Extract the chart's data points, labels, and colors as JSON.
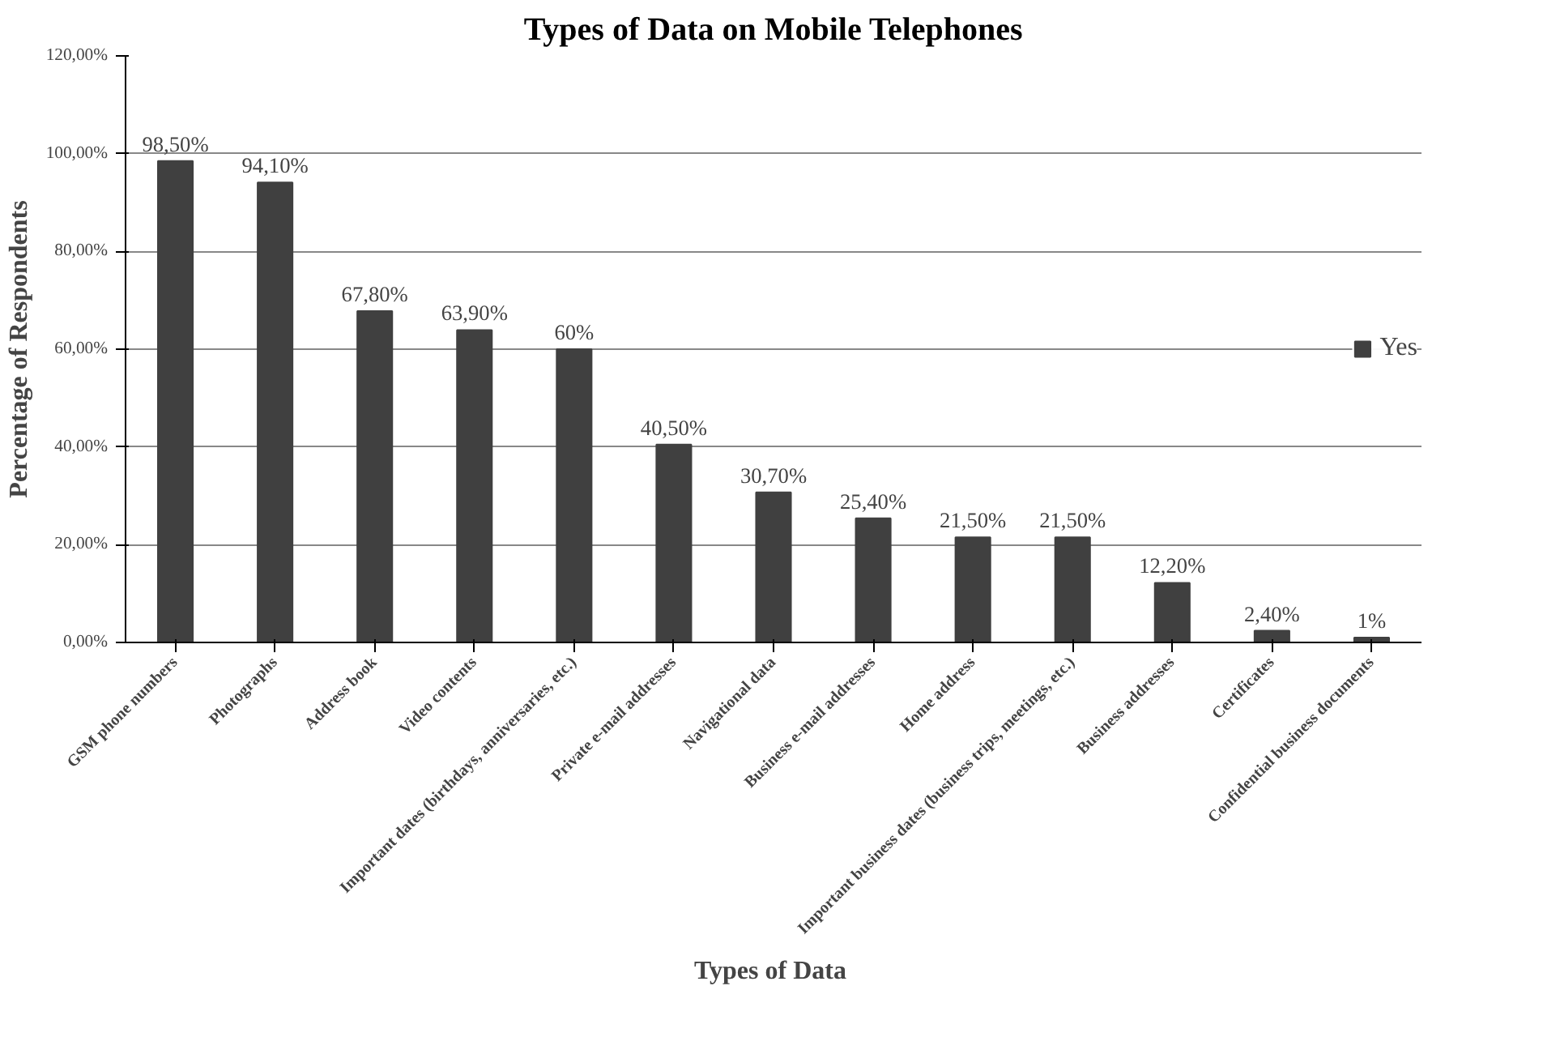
{
  "chart_data": {
    "type": "bar",
    "title": "Types of Data on Mobile Telephones",
    "xlabel": "Types  of Data",
    "ylabel": "Percentage of Respondents",
    "categories": [
      "GSM phone numbers",
      "Photographs",
      "Address book",
      "Video contents",
      "Important dates (birthdays, anniversaries, etc.)",
      "Private e-mail addresses",
      "Navigational data",
      "Business e-mail addresses",
      "Home address",
      "Important business dates (business trips, meetings, etc.)",
      "Business addresses",
      "Certificates",
      "Confidential business documents"
    ],
    "series": [
      {
        "name": "Yes",
        "color": "#404040",
        "values": [
          98.5,
          94.1,
          67.8,
          63.9,
          60,
          40.5,
          30.7,
          25.4,
          21.5,
          21.5,
          12.2,
          2.4,
          1
        ],
        "value_labels": [
          "98,50%",
          "94,10%",
          "67,80%",
          "63,90%",
          "60%",
          "40,50%",
          "30,70%",
          "25,40%",
          "21,50%",
          "21,50%",
          "12,20%",
          "2,40%",
          "1%"
        ]
      }
    ],
    "ylim": [
      0,
      120
    ],
    "yticks": [
      {
        "value": 0,
        "label": "0,00%"
      },
      {
        "value": 20,
        "label": "20,00%"
      },
      {
        "value": 40,
        "label": "40,00%"
      },
      {
        "value": 60,
        "label": "60,00%"
      },
      {
        "value": 80,
        "label": "80,00%"
      },
      {
        "value": 100,
        "label": "100,00%"
      },
      {
        "value": 120,
        "label": "120,00%"
      }
    ],
    "grid": "y",
    "legend": "right"
  }
}
